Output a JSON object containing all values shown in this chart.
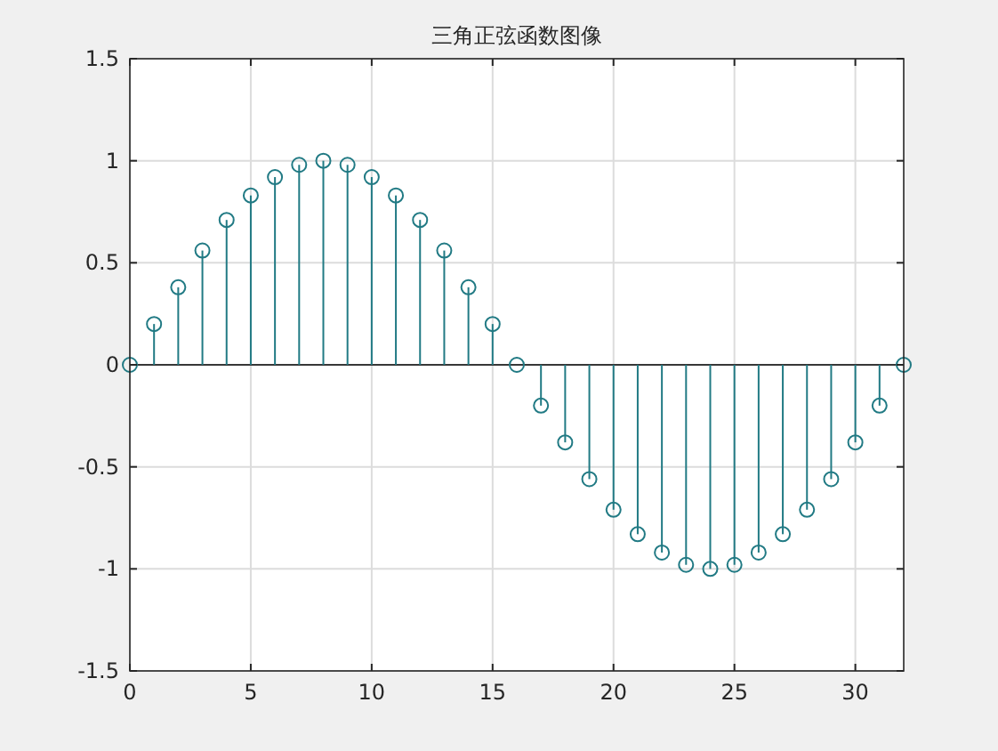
{
  "chart_data": {
    "type": "lollipop",
    "title": "三角正弦函数图像",
    "x": [
      0,
      1,
      2,
      3,
      4,
      5,
      6,
      7,
      8,
      9,
      10,
      11,
      12,
      13,
      14,
      15,
      16,
      17,
      18,
      19,
      20,
      21,
      22,
      23,
      24,
      25,
      26,
      27,
      28,
      29,
      30,
      31,
      32
    ],
    "series": [
      {
        "color": "#217a84",
        "values": [
          0,
          0.2,
          0.38,
          0.56,
          0.71,
          0.83,
          0.92,
          0.98,
          1,
          0.98,
          0.92,
          0.83,
          0.71,
          0.56,
          0.38,
          0.2,
          0,
          -0.2,
          -0.38,
          -0.56,
          -0.71,
          -0.83,
          -0.92,
          -0.98,
          -1,
          -0.98,
          -0.92,
          -0.83,
          -0.71,
          -0.56,
          -0.38,
          -0.2,
          0
        ]
      }
    ],
    "xlim": [
      0,
      32
    ],
    "xticks": [
      0,
      5,
      10,
      15,
      20,
      25,
      30
    ],
    "ylim": [
      -1.5,
      1.5
    ],
    "yticks": [
      -1.5,
      -1,
      -0.5,
      0,
      0.5,
      1,
      1.5
    ],
    "grid": true,
    "marker": "circle"
  }
}
